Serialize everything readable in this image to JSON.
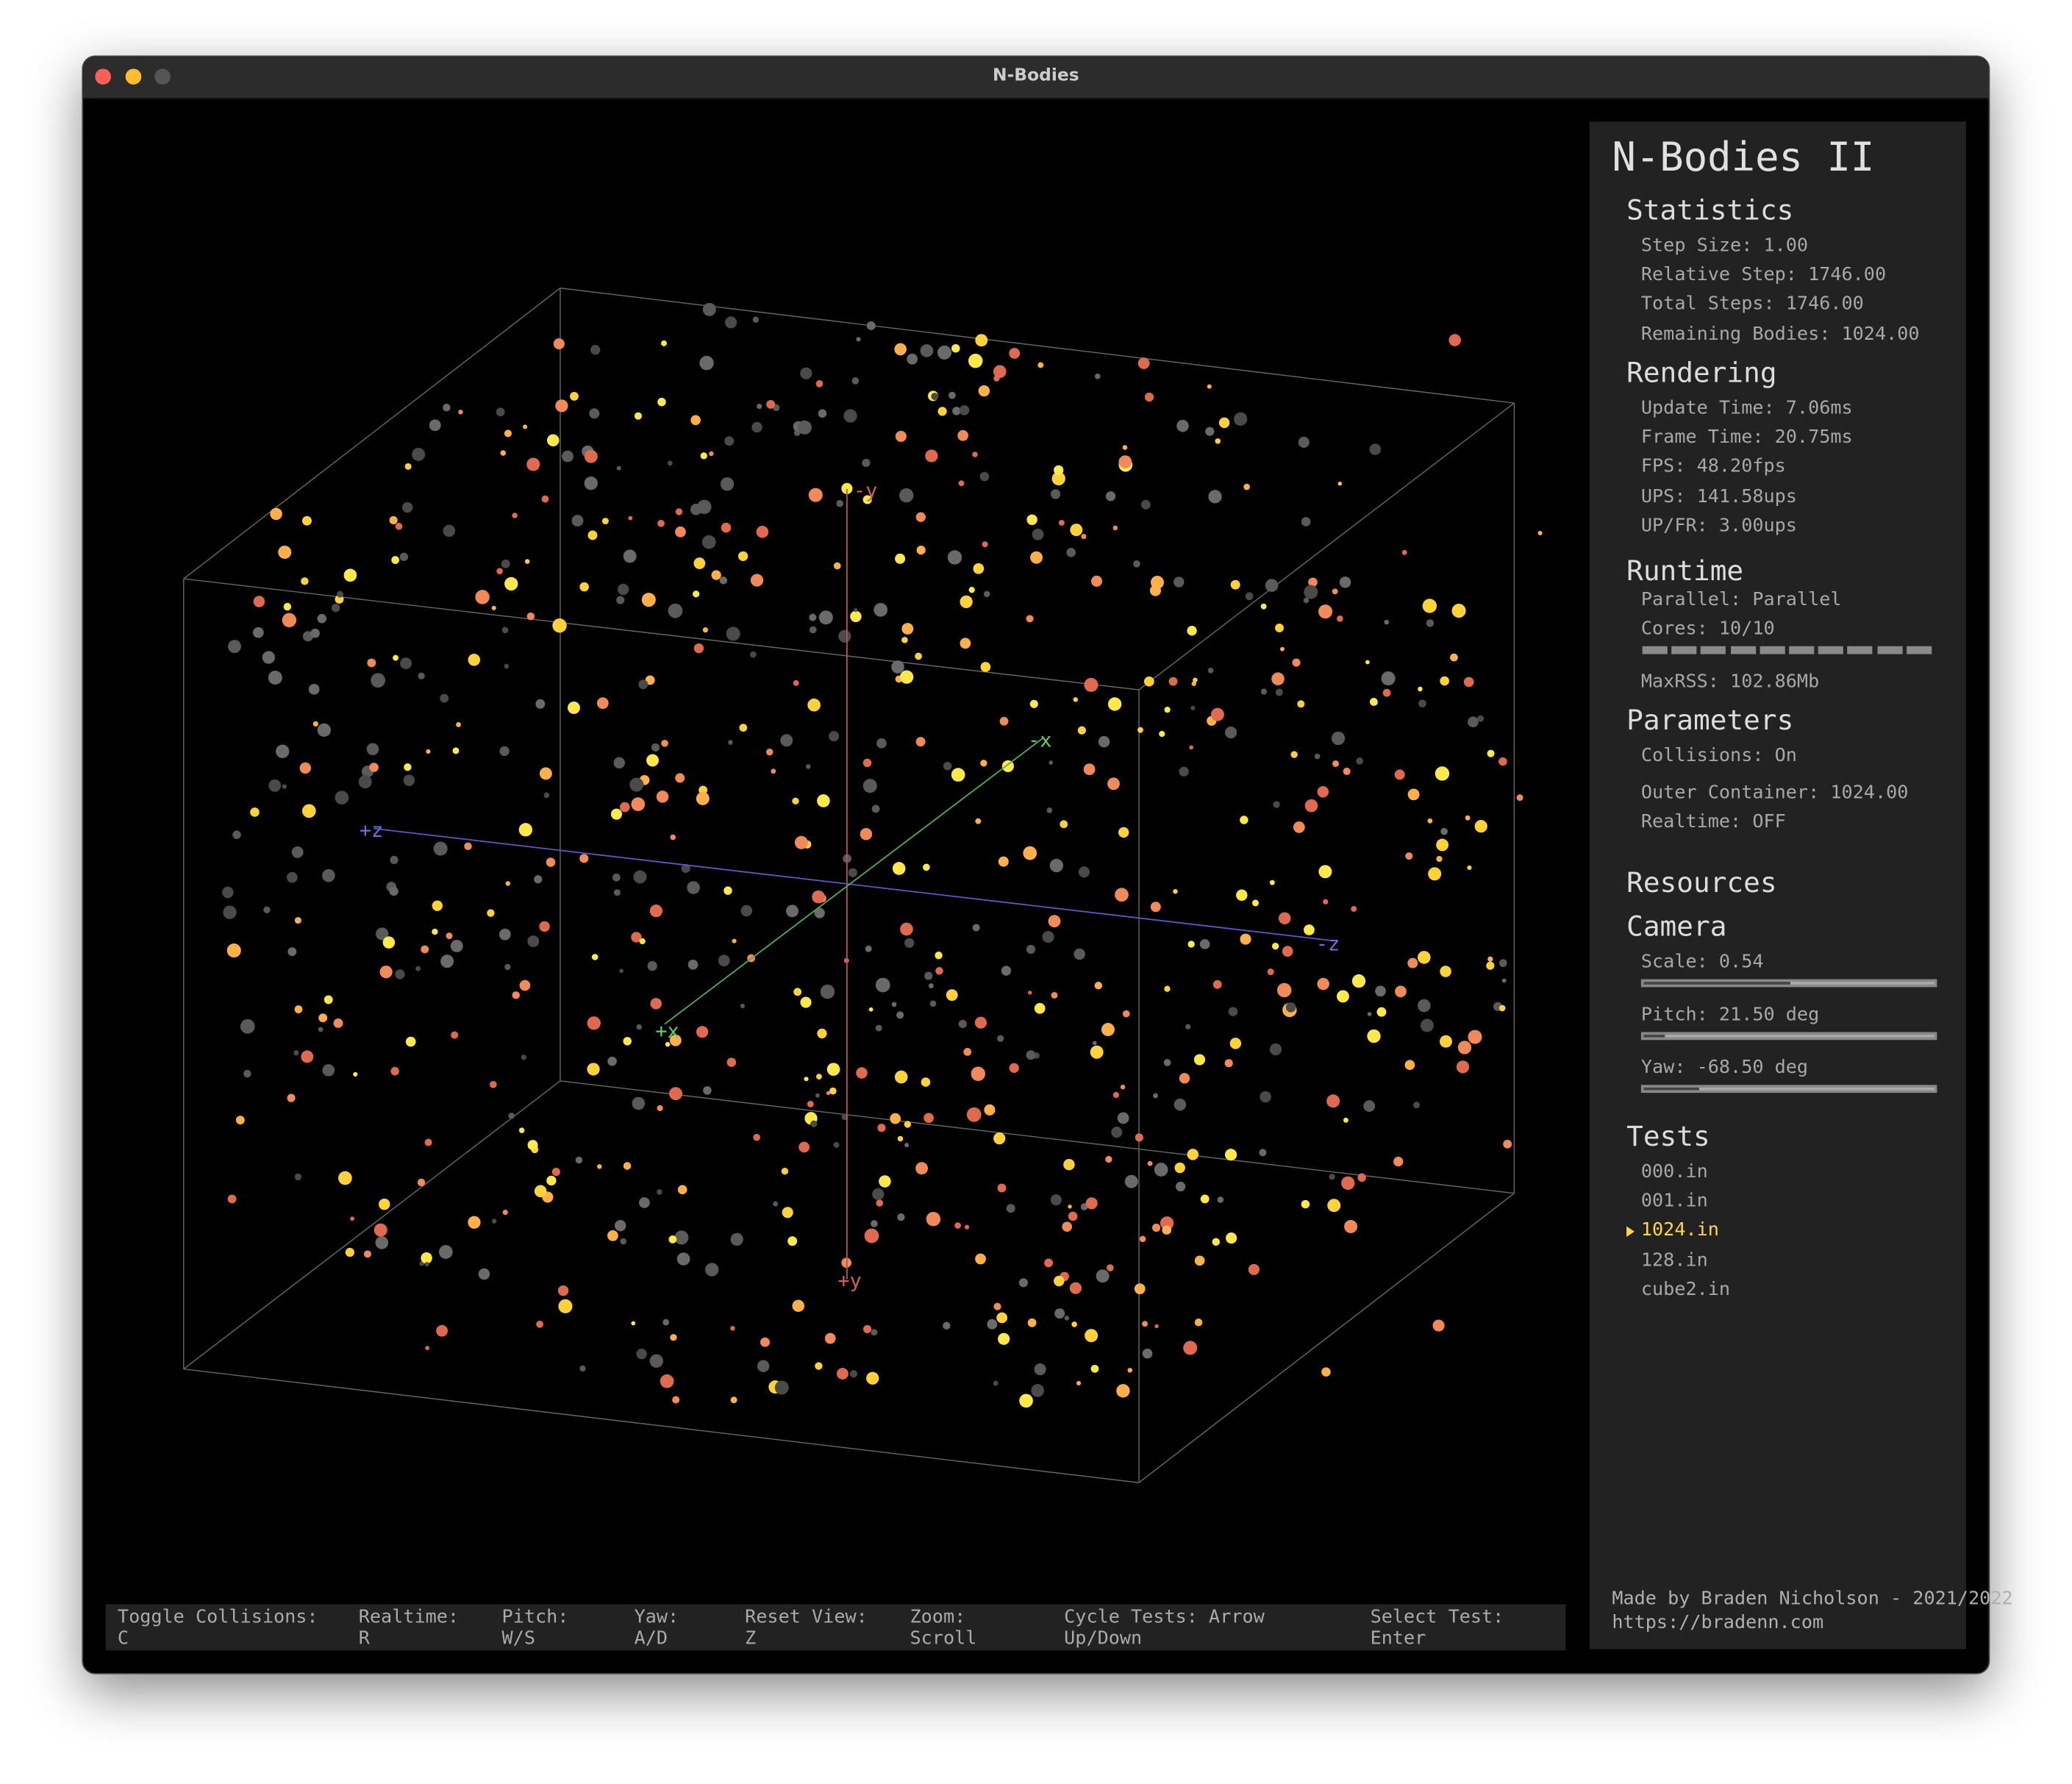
{
  "window": {
    "title": "N-Bodies"
  },
  "scene": {
    "axis_labels": [
      "-y",
      "+y",
      "+z",
      "-z",
      "-x",
      "+x"
    ]
  },
  "sidebar": {
    "title": "N-Bodies II",
    "sections": [
      {
        "heading": "Statistics",
        "items": [
          "Step Size: 1.00",
          "Relative Step: 1746.00",
          "Total Steps: 1746.00",
          "Remaining Bodies: 1024.00"
        ]
      },
      {
        "heading": "Rendering",
        "items": [
          "Update Time: 7.06ms",
          "Frame Time: 20.75ms",
          "FPS: 48.20fps",
          "UPS: 141.58ups",
          "UP/FR: 3.00ups"
        ]
      },
      {
        "heading": "Runtime",
        "items": [
          "Parallel: Parallel",
          "Cores: 10/10",
          "MaxRSS: 102.86Mb"
        ]
      },
      {
        "heading": "Parameters",
        "items": [
          "Collisions: On",
          "Outer Container: 1024.00",
          "Realtime: OFF"
        ]
      },
      {
        "heading": "Resources",
        "items": []
      },
      {
        "heading": "Camera",
        "items": [
          "Scale: 0.54",
          "Pitch: 21.50 deg",
          "Yaw: -68.50 deg"
        ]
      },
      {
        "heading": "Tests",
        "items": [
          "000.in",
          "001.in",
          "1024.in",
          "128.in",
          "cube2.in"
        ],
        "selected_index": 2
      }
    ],
    "footer": [
      "Made by Braden Nicholson - 2021/2022",
      "https://bradenn.com"
    ]
  },
  "controls": [
    "Toggle Collisions: C",
    "Realtime: R",
    "Pitch: W/S",
    "Yaw: A/D",
    "Reset View: Z",
    "Zoom: Scroll",
    "Cycle Tests: Arrow Up/Down",
    "Select Test: Enter"
  ]
}
